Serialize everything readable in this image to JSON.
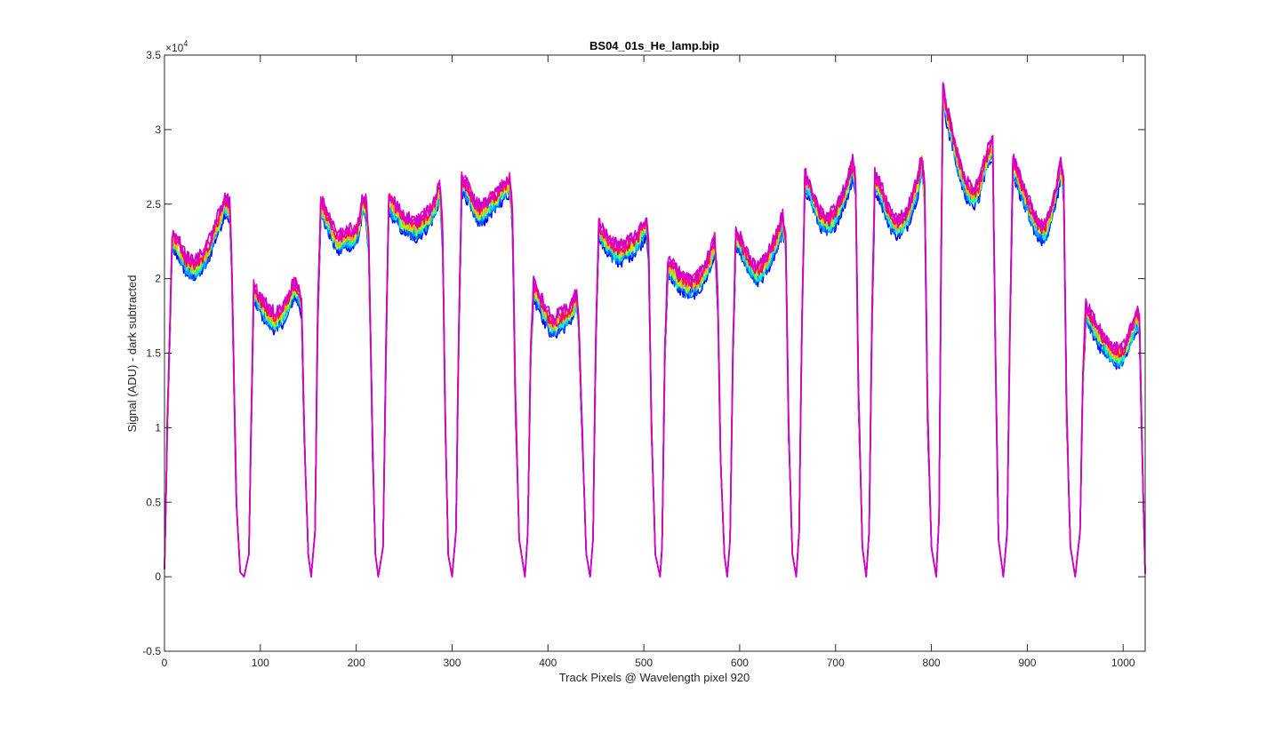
{
  "chart_data": {
    "type": "line",
    "title": "BS04_01s_He_lamp.bip",
    "xlabel": "Track Pixels @ Wavelength pixel 920",
    "ylabel": "Signal (ADU) - dark subtracted",
    "y_exponent_label": "×10",
    "y_exponent_power": "4",
    "xlim": [
      0,
      1023
    ],
    "ylim": [
      -5000,
      35000
    ],
    "x_ticks": [
      0,
      100,
      200,
      300,
      400,
      500,
      600,
      700,
      800,
      900,
      1000
    ],
    "x_tick_labels": [
      "0",
      "100",
      "200",
      "300",
      "400",
      "500",
      "600",
      "700",
      "800",
      "900",
      "1000"
    ],
    "y_ticks": [
      -5000,
      0,
      5000,
      10000,
      15000,
      20000,
      25000,
      30000,
      35000
    ],
    "y_tick_labels": [
      "-0.5",
      "0",
      "0.5",
      "1",
      "1.5",
      "2",
      "2.5",
      "3",
      "3.5"
    ],
    "grid": false,
    "colors": {
      "axes": "#262626",
      "series": [
        "#0000ff",
        "#0055ff",
        "#00aaff",
        "#00ffcc",
        "#aaff00",
        "#ffaa00",
        "#ff0055",
        "#ff00aa",
        "#cc00cc"
      ]
    },
    "segments": [
      {
        "x": [
          0,
          3,
          8,
          15,
          22,
          30,
          38,
          45,
          52,
          58,
          63,
          68,
          70,
          75,
          79,
          83
        ],
        "y": [
          500,
          10000,
          22500,
          22000,
          21000,
          20700,
          21000,
          21700,
          23000,
          24000,
          25000,
          24500,
          21000,
          5000,
          300,
          0
        ]
      },
      {
        "x": [
          83,
          88,
          91,
          93,
          96,
          100,
          105,
          110,
          115,
          120,
          125,
          130,
          135,
          140,
          143,
          146,
          150,
          153
        ],
        "y": [
          0,
          1500,
          12000,
          19000,
          18800,
          18300,
          17800,
          17400,
          17200,
          17400,
          17800,
          18500,
          19300,
          19000,
          18000,
          9000,
          1500,
          0
        ]
      },
      {
        "x": [
          153,
          157,
          160,
          163,
          167,
          172,
          177,
          182,
          187,
          192,
          197,
          202,
          207,
          210,
          213,
          217,
          220,
          223
        ],
        "y": [
          0,
          3000,
          18000,
          24800,
          24300,
          23600,
          22800,
          22300,
          22600,
          22800,
          22700,
          23200,
          25000,
          24800,
          22500,
          9000,
          1500,
          0
        ]
      },
      {
        "x": [
          223,
          228,
          231,
          234,
          240,
          248,
          255,
          262,
          270,
          277,
          283,
          287,
          290,
          293,
          296,
          300
        ],
        "y": [
          0,
          2000,
          15000,
          25200,
          24500,
          23800,
          23500,
          23300,
          23700,
          24200,
          25000,
          26000,
          23000,
          10000,
          1500,
          0
        ]
      },
      {
        "x": [
          300,
          304,
          307,
          310,
          315,
          320,
          325,
          330,
          335,
          340,
          345,
          350,
          355,
          360,
          363,
          366,
          370,
          376
        ],
        "y": [
          0,
          3000,
          16000,
          26300,
          26000,
          25300,
          24500,
          24300,
          24600,
          25000,
          25300,
          25700,
          26000,
          26300,
          24000,
          12000,
          2500,
          0
        ]
      },
      {
        "x": [
          376,
          379,
          382,
          385,
          390,
          395,
          400,
          405,
          410,
          415,
          420,
          425,
          430,
          432,
          436,
          440,
          444
        ],
        "y": [
          0,
          3000,
          15000,
          19200,
          18700,
          17900,
          17200,
          16800,
          17000,
          17200,
          17500,
          17900,
          18500,
          17000,
          9000,
          1500,
          0
        ]
      },
      {
        "x": [
          444,
          447,
          450,
          453,
          458,
          463,
          468,
          473,
          478,
          483,
          488,
          493,
          498,
          503,
          505,
          508,
          512,
          517
        ],
        "y": [
          0,
          2500,
          16000,
          23300,
          22700,
          22200,
          21900,
          21700,
          21800,
          22000,
          22200,
          22500,
          23000,
          23600,
          22000,
          10000,
          1500,
          0
        ]
      },
      {
        "x": [
          517,
          519,
          522,
          525,
          530,
          535,
          540,
          545,
          550,
          555,
          560,
          565,
          570,
          574,
          577,
          580,
          584,
          587
        ],
        "y": [
          0,
          2000,
          15000,
          20800,
          20500,
          20000,
          19700,
          19500,
          19500,
          19700,
          20000,
          20600,
          21300,
          22300,
          19000,
          8000,
          1500,
          0
        ]
      },
      {
        "x": [
          587,
          590,
          593,
          596,
          600,
          605,
          610,
          615,
          620,
          625,
          630,
          635,
          640,
          645,
          648,
          651,
          655,
          659
        ],
        "y": [
          0,
          2500,
          15000,
          22800,
          22300,
          21600,
          21000,
          20500,
          20300,
          20700,
          21300,
          22000,
          22800,
          23800,
          22500,
          10000,
          1500,
          0
        ]
      },
      {
        "x": [
          659,
          662,
          665,
          668,
          673,
          678,
          683,
          688,
          693,
          698,
          703,
          708,
          713,
          718,
          721,
          724,
          728,
          732
        ],
        "y": [
          0,
          3000,
          17000,
          26500,
          26000,
          25000,
          24200,
          23800,
          23700,
          24000,
          24600,
          25300,
          26200,
          27500,
          26000,
          12000,
          2000,
          0
        ]
      },
      {
        "x": [
          732,
          735,
          738,
          741,
          746,
          751,
          756,
          761,
          766,
          771,
          776,
          781,
          786,
          790,
          793,
          796,
          800,
          805
        ],
        "y": [
          0,
          3000,
          17000,
          26500,
          26000,
          25000,
          24200,
          23600,
          23500,
          23700,
          24300,
          25300,
          26300,
          27800,
          25500,
          11000,
          2000,
          0
        ]
      },
      {
        "x": [
          805,
          808,
          810,
          812,
          816,
          820,
          825,
          830,
          835,
          840,
          845,
          850,
          855,
          860,
          864,
          867,
          870,
          875
        ],
        "y": [
          0,
          4000,
          20000,
          32500,
          31000,
          30000,
          28500,
          27200,
          26200,
          25700,
          25500,
          26000,
          27500,
          28300,
          28800,
          14000,
          2500,
          0
        ]
      },
      {
        "x": [
          875,
          879,
          882,
          885,
          890,
          895,
          900,
          905,
          910,
          915,
          920,
          925,
          930,
          935,
          938,
          941,
          945,
          950
        ],
        "y": [
          0,
          3000,
          17000,
          27500,
          26800,
          25800,
          25000,
          24200,
          23500,
          23100,
          23300,
          24300,
          25800,
          27300,
          26000,
          11000,
          2000,
          0
        ]
      },
      {
        "x": [
          950,
          955,
          958,
          961,
          966,
          971,
          976,
          981,
          986,
          991,
          996,
          1001,
          1006,
          1011,
          1014,
          1017,
          1020,
          1023
        ],
        "y": [
          0,
          3000,
          13000,
          17800,
          17200,
          16600,
          16000,
          15600,
          15200,
          14900,
          14800,
          15100,
          15800,
          16700,
          17200,
          17100,
          8000,
          200
        ]
      }
    ]
  }
}
